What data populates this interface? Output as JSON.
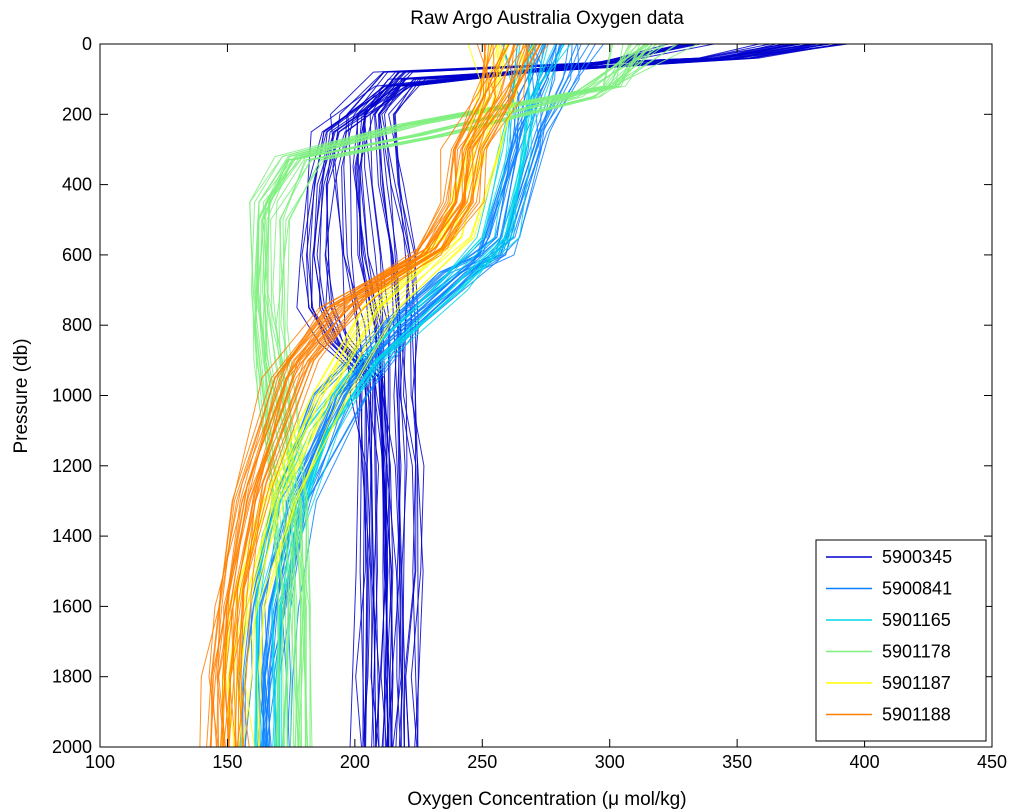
{
  "chart_data": {
    "type": "line",
    "title": "Raw Argo Australia Oxygen data",
    "xlabel": "Oxygen Concentration (μ mol/kg)",
    "ylabel": "Pressure (db)",
    "xlim": [
      100,
      450
    ],
    "ylim": [
      0,
      2000
    ],
    "y_reversed": true,
    "x_ticks": [
      100,
      150,
      200,
      250,
      300,
      350,
      400,
      450
    ],
    "y_ticks": [
      0,
      200,
      400,
      600,
      800,
      1000,
      1200,
      1400,
      1600,
      1800,
      2000
    ],
    "grid": false,
    "legend_position": "bottom-right",
    "note": "Each series is an ensemble of many float profiles; representative profile shapes (oxygen vs pressure) are given below.",
    "series": [
      {
        "name": "5900345",
        "color": "#0000cc",
        "profiles": [
          {
            "x": [
              370,
              340,
              215,
              200,
              198,
              200,
              205,
              207,
              209,
              210,
              210,
              210
            ],
            "y": [
              0,
              40,
              80,
              200,
              350,
              600,
              800,
              1000,
              1200,
              1500,
              1800,
              2000
            ]
          },
          {
            "x": [
              385,
              350,
              220,
              210,
              212,
              216,
              218,
              218,
              219,
              219,
              219,
              219
            ],
            "y": [
              0,
              40,
              100,
              200,
              400,
              600,
              800,
              1000,
              1200,
              1500,
              1800,
              2000
            ]
          },
          {
            "x": [
              330,
              300,
              215,
              190,
              185,
              183,
              185,
              192,
              205,
              206,
              206
            ],
            "y": [
              0,
              50,
              120,
              250,
              400,
              600,
              750,
              850,
              950,
              1500,
              2000
            ]
          }
        ]
      },
      {
        "name": "5900841",
        "color": "#0a80ff",
        "profiles": [
          {
            "x": [
              285,
              280,
              270,
              255,
              240,
              210,
              190,
              175,
              165,
              162,
              162
            ],
            "y": [
              0,
              100,
              250,
              600,
              650,
              850,
              1000,
              1300,
              1600,
              1800,
              2000
            ]
          },
          {
            "x": [
              275,
              270,
              268,
              260,
              250,
              220,
              200,
              180,
              172,
              170,
              170
            ],
            "y": [
              0,
              150,
              300,
              550,
              620,
              800,
              1000,
              1300,
              1600,
              1800,
              2000
            ]
          }
        ]
      },
      {
        "name": "5901165",
        "color": "#00d8e8",
        "profiles": [
          {
            "x": [
              270,
              265,
              262,
              255,
              235,
              205,
              185,
              170,
              165,
              165
            ],
            "y": [
              0,
              150,
              300,
              550,
              700,
              900,
              1100,
              1400,
              1600,
              2000
            ]
          }
        ]
      },
      {
        "name": "5901178",
        "color": "#7ff07f",
        "profiles": [
          {
            "x": [
              310,
              300,
              220,
              175,
              163,
              162,
              165,
              170,
              175,
              177,
              177
            ],
            "y": [
              0,
              120,
              230,
              320,
              450,
              700,
              900,
              1100,
              1300,
              1600,
              2000
            ]
          },
          {
            "x": [
              320,
              290,
              230,
              180,
              168,
              167,
              170,
              174,
              176,
              176
            ],
            "y": [
              0,
              150,
              260,
              330,
              500,
              800,
              1000,
              1300,
              1600,
              2000
            ]
          }
        ]
      },
      {
        "name": "5901187",
        "color": "#ffff00",
        "profiles": [
          {
            "x": [
              260,
              255,
              250,
              240,
              210,
              190,
              170,
              158,
              155,
              155
            ],
            "y": [
              0,
              150,
              300,
              550,
              750,
              1000,
              1300,
              1600,
              1800,
              2000
            ]
          }
        ]
      },
      {
        "name": "5901188",
        "color": "#ff7f00",
        "profiles": [
          {
            "x": [
              255,
              250,
              240,
              238,
              225,
              190,
              170,
              155,
              148,
              145,
              145
            ],
            "y": [
              0,
              150,
              300,
              450,
              600,
              750,
              950,
              1300,
              1600,
              1800,
              2000
            ]
          },
          {
            "x": [
              265,
              258,
              245,
              242,
              230,
              200,
              178,
              160,
              152,
              150,
              150
            ],
            "y": [
              0,
              150,
              300,
              450,
              580,
              720,
              900,
              1250,
              1550,
              1800,
              2000
            ]
          }
        ]
      }
    ]
  }
}
